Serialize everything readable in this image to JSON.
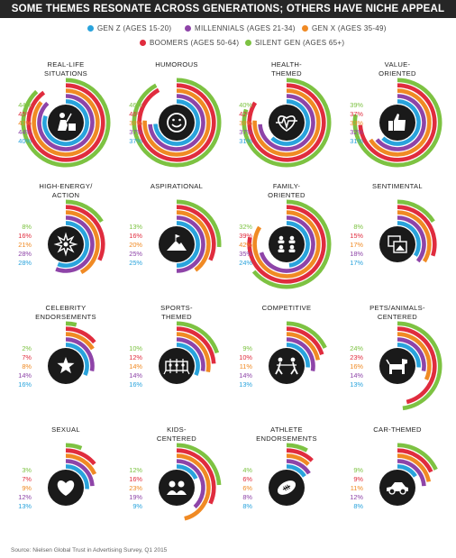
{
  "title": "SOME THEMES RESONATE ACROSS GENERATIONS; OTHERS HAVE NICHE APPEAL",
  "source": "Source: Nielsen Global Trust in Advertising Survey, Q1 2015",
  "colors": {
    "gen_z": "#29a3dc",
    "millennials": "#8e44a8",
    "gen_x": "#f08a24",
    "boomers": "#e02c3e",
    "silent": "#7dc242",
    "icon_bg": "#1a1a1a",
    "track": "#ffffff"
  },
  "legend": [
    {
      "label": "GEN Z (AGES 15-20)",
      "color": "#29a3dc"
    },
    {
      "label": "MILLENNIALS (AGES 21-34)",
      "color": "#8e44a8"
    },
    {
      "label": "GEN X (AGES 35-49)",
      "color": "#f08a24"
    },
    {
      "label": "BOOMERS (AGES 50-64)",
      "color": "#e02c3e"
    },
    {
      "label": "SILENT GEN (AGES 65+)",
      "color": "#7dc242"
    }
  ],
  "chart_data": {
    "type": "radial-bar",
    "series_order_top_to_bottom": [
      "Silent Gen (Ages 65+)",
      "Boomers (Ages 50-64)",
      "Gen X (Ages 35-49)",
      "Millennials (Ages 21-34)",
      "Gen Z (Ages 15-20)"
    ],
    "scale_max_percent": 50,
    "themes": [
      {
        "label": [
          "REAL-LIFE",
          "SITUATIONS"
        ],
        "icon": "worker-icon",
        "values": [
          "44%",
          "45%",
          "43%",
          "44%",
          "40%"
        ]
      },
      {
        "label": [
          "HUMOROUS"
        ],
        "icon": "smiley-icon",
        "values": [
          "46%",
          "46%",
          "38%",
          "37%",
          "37%"
        ]
      },
      {
        "label": [
          "HEALTH-",
          "THEMED"
        ],
        "icon": "heartbeat-icon",
        "values": [
          "40%",
          "42%",
          "38%",
          "37%",
          "31%"
        ]
      },
      {
        "label": [
          "VALUE-",
          "ORIENTED"
        ],
        "icon": "thumbs-up-icon",
        "values": [
          "39%",
          "37%",
          "33%",
          "32%",
          "31%"
        ]
      },
      {
        "label": [
          "HIGH-ENERGY/",
          "ACTION"
        ],
        "icon": "burst-icon",
        "values": [
          "8%",
          "16%",
          "21%",
          "28%",
          "28%"
        ]
      },
      {
        "label": [
          "ASPIRATIONAL"
        ],
        "icon": "mountain-icon",
        "values": [
          "13%",
          "16%",
          "20%",
          "25%",
          "25%"
        ]
      },
      {
        "label": [
          "FAMILY-",
          "ORIENTED"
        ],
        "icon": "family-icon",
        "values": [
          "32%",
          "39%",
          "42%",
          "35%",
          "24%"
        ]
      },
      {
        "label": [
          "SENTIMENTAL"
        ],
        "icon": "photos-icon",
        "values": [
          "8%",
          "15%",
          "17%",
          "18%",
          "17%"
        ]
      },
      {
        "label": [
          "CELEBRITY",
          "ENDORSEMENTS"
        ],
        "icon": "star-icon",
        "values": [
          "2%",
          "7%",
          "8%",
          "14%",
          "16%"
        ]
      },
      {
        "label": [
          "SPORTS-",
          "THEMED"
        ],
        "icon": "foosball-icon",
        "values": [
          "10%",
          "12%",
          "14%",
          "14%",
          "16%"
        ]
      },
      {
        "label": [
          "COMPETITIVE"
        ],
        "icon": "tug-of-war-icon",
        "values": [
          "9%",
          "10%",
          "11%",
          "14%",
          "13%"
        ]
      },
      {
        "label": [
          "PETS/ANIMALS-",
          "CENTERED"
        ],
        "icon": "dog-icon",
        "values": [
          "24%",
          "23%",
          "16%",
          "14%",
          "13%"
        ]
      },
      {
        "label": [
          "SEXUAL"
        ],
        "icon": "heart-icon",
        "values": [
          "3%",
          "7%",
          "9%",
          "12%",
          "13%"
        ]
      },
      {
        "label": [
          "KIDS-",
          "CENTERED"
        ],
        "icon": "kids-icon",
        "values": [
          "12%",
          "16%",
          "23%",
          "19%",
          "9%"
        ]
      },
      {
        "label": [
          "ATHLETE",
          "ENDORSEMENTS"
        ],
        "icon": "football-icon",
        "values": [
          "4%",
          "6%",
          "6%",
          "8%",
          "8%"
        ]
      },
      {
        "label": [
          "CAR-THEMED"
        ],
        "icon": "car-icon",
        "values": [
          "9%",
          "9%",
          "11%",
          "12%",
          "8%"
        ]
      }
    ]
  }
}
